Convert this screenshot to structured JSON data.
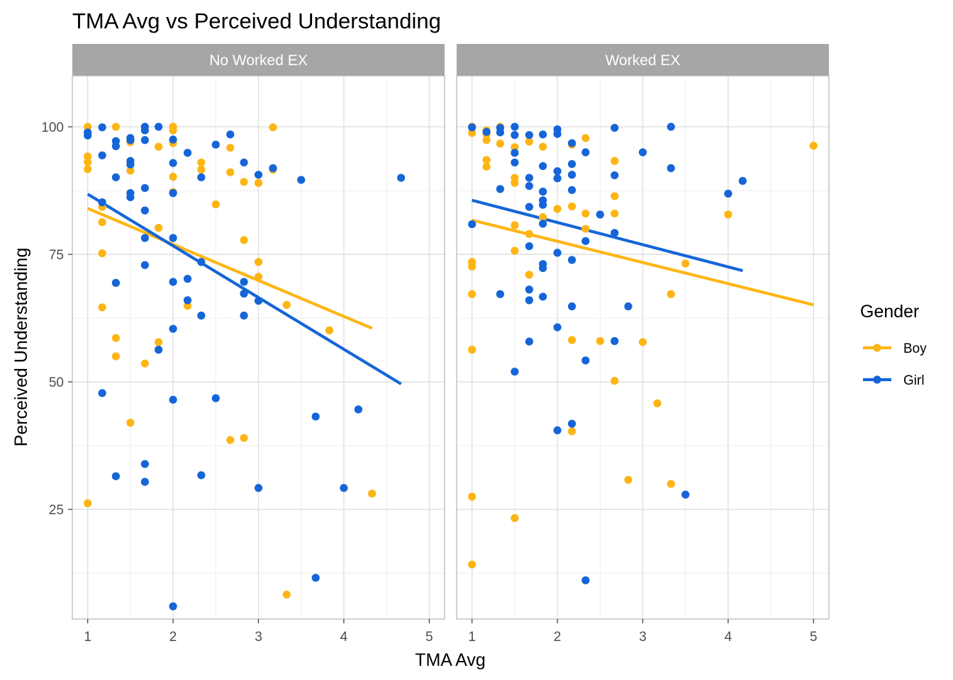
{
  "chart_data": {
    "type": "scatter",
    "title": "TMA Avg vs Perceived Understanding",
    "xlabel": "TMA Avg",
    "ylabel": "Perceived Understanding",
    "x_ticks": [
      1,
      2,
      3,
      4,
      5
    ],
    "y_ticks": [
      25,
      50,
      75,
      100
    ],
    "xlim": [
      0.82,
      5.18
    ],
    "ylim": [
      3.5,
      110
    ],
    "grid": true,
    "legend": {
      "title": "Gender",
      "position": "right"
    },
    "colors": {
      "Boy": "#FDB515",
      "Girl": "#1565D8"
    },
    "panels": [
      {
        "label": "No Worked EX",
        "trend": {
          "Boy": {
            "x": [
              1.0,
              4.33
            ],
            "y": [
              84.0,
              60.5
            ]
          },
          "Girl": {
            "x": [
              1.0,
              4.67
            ],
            "y": [
              86.8,
              49.6
            ]
          }
        },
        "series": [
          {
            "name": "Boy",
            "points": [
              [
                1.0,
                100
              ],
              [
                1.0,
                94.2
              ],
              [
                1.0,
                93.1
              ],
              [
                1.0,
                91.7
              ],
              [
                1.0,
                26.2
              ],
              [
                1.17,
                84.3
              ],
              [
                1.17,
                81.3
              ],
              [
                1.17,
                75.2
              ],
              [
                1.17,
                64.6
              ],
              [
                1.33,
                100
              ],
              [
                1.33,
                69.4
              ],
              [
                1.33,
                58.6
              ],
              [
                1.33,
                55.0
              ],
              [
                1.5,
                97.0
              ],
              [
                1.5,
                91.4
              ],
              [
                1.5,
                42.0
              ],
              [
                1.67,
                53.6
              ],
              [
                1.83,
                96.1
              ],
              [
                1.83,
                80.2
              ],
              [
                1.83,
                57.8
              ],
              [
                2.0,
                100
              ],
              [
                2.0,
                99.3
              ],
              [
                2.0,
                96.8
              ],
              [
                2.0,
                90.2
              ],
              [
                2.0,
                87.2
              ],
              [
                2.17,
                64.9
              ],
              [
                2.33,
                93.0
              ],
              [
                2.33,
                91.6
              ],
              [
                2.5,
                84.8
              ],
              [
                2.67,
                95.9
              ],
              [
                2.67,
                91.1
              ],
              [
                2.67,
                38.6
              ],
              [
                2.83,
                89.2
              ],
              [
                2.83,
                77.8
              ],
              [
                2.83,
                39.0
              ],
              [
                3.0,
                89.0
              ],
              [
                3.0,
                73.5
              ],
              [
                3.0,
                70.6
              ],
              [
                3.17,
                99.9
              ],
              [
                3.17,
                91.6
              ],
              [
                3.33,
                65.1
              ],
              [
                3.33,
                8.3
              ],
              [
                3.83,
                60.1
              ],
              [
                4.33,
                28.1
              ]
            ]
          },
          {
            "name": "Girl",
            "points": [
              [
                1.0,
                98.9
              ],
              [
                1.0,
                98.3
              ],
              [
                1.17,
                99.9
              ],
              [
                1.17,
                94.4
              ],
              [
                1.17,
                85.2
              ],
              [
                1.17,
                47.8
              ],
              [
                1.33,
                97.2
              ],
              [
                1.33,
                96.2
              ],
              [
                1.33,
                90.1
              ],
              [
                1.33,
                69.4
              ],
              [
                1.33,
                31.5
              ],
              [
                1.5,
                97.8
              ],
              [
                1.5,
                97.4
              ],
              [
                1.5,
                93.3
              ],
              [
                1.5,
                92.6
              ],
              [
                1.5,
                87.0
              ],
              [
                1.5,
                86.2
              ],
              [
                1.67,
                100
              ],
              [
                1.67,
                99.3
              ],
              [
                1.67,
                97.4
              ],
              [
                1.67,
                88.0
              ],
              [
                1.67,
                83.6
              ],
              [
                1.67,
                78.2
              ],
              [
                1.67,
                72.9
              ],
              [
                1.67,
                33.9
              ],
              [
                1.67,
                30.4
              ],
              [
                1.83,
                100
              ],
              [
                1.83,
                56.3
              ],
              [
                2.0,
                97.5
              ],
              [
                2.0,
                92.9
              ],
              [
                2.0,
                87.0
              ],
              [
                2.0,
                78.2
              ],
              [
                2.0,
                69.6
              ],
              [
                2.0,
                60.4
              ],
              [
                2.0,
                46.5
              ],
              [
                2.0,
                6.0
              ],
              [
                2.17,
                94.9
              ],
              [
                2.17,
                70.2
              ],
              [
                2.17,
                66.0
              ],
              [
                2.33,
                90.1
              ],
              [
                2.33,
                73.5
              ],
              [
                2.33,
                63.0
              ],
              [
                2.33,
                31.7
              ],
              [
                2.5,
                96.5
              ],
              [
                2.5,
                46.8
              ],
              [
                2.67,
                98.5
              ],
              [
                2.83,
                93.0
              ],
              [
                2.83,
                69.6
              ],
              [
                2.83,
                67.3
              ],
              [
                2.83,
                63.0
              ],
              [
                3.0,
                90.6
              ],
              [
                3.0,
                65.9
              ],
              [
                3.0,
                29.2
              ],
              [
                3.17,
                91.9
              ],
              [
                3.5,
                89.6
              ],
              [
                3.67,
                43.2
              ],
              [
                3.67,
                11.6
              ],
              [
                4.0,
                29.2
              ],
              [
                4.17,
                44.6
              ],
              [
                4.67,
                90.0
              ]
            ]
          }
        ]
      },
      {
        "label": "Worked EX",
        "trend": {
          "Boy": {
            "x": [
              1.0,
              5.0
            ],
            "y": [
              81.7,
              65.1
            ]
          },
          "Girl": {
            "x": [
              1.0,
              4.17
            ],
            "y": [
              85.6,
              71.8
            ]
          }
        },
        "series": [
          {
            "name": "Boy",
            "points": [
              [
                1.0,
                100
              ],
              [
                1.0,
                98.8
              ],
              [
                1.0,
                73.5
              ],
              [
                1.0,
                72.6
              ],
              [
                1.0,
                67.2
              ],
              [
                1.0,
                56.3
              ],
              [
                1.0,
                27.5
              ],
              [
                1.0,
                14.2
              ],
              [
                1.17,
                99.3
              ],
              [
                1.17,
                98.5
              ],
              [
                1.17,
                97.4
              ],
              [
                1.17,
                93.5
              ],
              [
                1.17,
                92.2
              ],
              [
                1.33,
                100
              ],
              [
                1.33,
                96.7
              ],
              [
                1.5,
                96.0
              ],
              [
                1.5,
                90.0
              ],
              [
                1.5,
                89.0
              ],
              [
                1.5,
                80.7
              ],
              [
                1.5,
                75.7
              ],
              [
                1.5,
                23.3
              ],
              [
                1.67,
                97.1
              ],
              [
                1.67,
                79.0
              ],
              [
                1.67,
                71.0
              ],
              [
                1.83,
                96.1
              ],
              [
                1.83,
                82.3
              ],
              [
                2.0,
                83.9
              ],
              [
                2.17,
                96.5
              ],
              [
                2.17,
                84.4
              ],
              [
                2.17,
                58.2
              ],
              [
                2.17,
                40.3
              ],
              [
                2.33,
                97.8
              ],
              [
                2.33,
                83.0
              ],
              [
                2.33,
                80.0
              ],
              [
                2.5,
                58.0
              ],
              [
                2.67,
                93.3
              ],
              [
                2.67,
                86.4
              ],
              [
                2.67,
                83.0
              ],
              [
                2.67,
                50.2
              ],
              [
                2.83,
                30.8
              ],
              [
                3.0,
                57.8
              ],
              [
                3.17,
                45.8
              ],
              [
                3.33,
                67.2
              ],
              [
                3.33,
                30.0
              ],
              [
                3.5,
                73.2
              ],
              [
                4.0,
                82.8
              ],
              [
                5.0,
                96.3
              ]
            ]
          },
          {
            "name": "Girl",
            "points": [
              [
                1.0,
                99.9
              ],
              [
                1.0,
                80.9
              ],
              [
                1.17,
                99.0
              ],
              [
                1.33,
                99.8
              ],
              [
                1.33,
                98.9
              ],
              [
                1.33,
                87.8
              ],
              [
                1.33,
                67.2
              ],
              [
                1.5,
                100
              ],
              [
                1.5,
                98.4
              ],
              [
                1.5,
                94.9
              ],
              [
                1.5,
                93.0
              ],
              [
                1.5,
                52.0
              ],
              [
                1.67,
                98.4
              ],
              [
                1.67,
                90.0
              ],
              [
                1.67,
                88.4
              ],
              [
                1.67,
                84.3
              ],
              [
                1.67,
                76.6
              ],
              [
                1.67,
                68.1
              ],
              [
                1.67,
                66.0
              ],
              [
                1.67,
                57.9
              ],
              [
                1.83,
                98.5
              ],
              [
                1.83,
                92.3
              ],
              [
                1.83,
                87.3
              ],
              [
                1.83,
                85.6
              ],
              [
                1.83,
                84.7
              ],
              [
                1.83,
                81.0
              ],
              [
                1.83,
                73.1
              ],
              [
                1.83,
                72.3
              ],
              [
                1.83,
                66.7
              ],
              [
                2.0,
                99.5
              ],
              [
                2.0,
                98.6
              ],
              [
                2.0,
                91.3
              ],
              [
                2.0,
                89.9
              ],
              [
                2.0,
                75.3
              ],
              [
                2.0,
                60.7
              ],
              [
                2.0,
                40.5
              ],
              [
                2.17,
                96.8
              ],
              [
                2.17,
                92.7
              ],
              [
                2.17,
                90.6
              ],
              [
                2.17,
                87.6
              ],
              [
                2.17,
                73.9
              ],
              [
                2.17,
                64.8
              ],
              [
                2.17,
                41.8
              ],
              [
                2.33,
                95.0
              ],
              [
                2.33,
                77.6
              ],
              [
                2.33,
                54.2
              ],
              [
                2.33,
                11.1
              ],
              [
                2.5,
                82.8
              ],
              [
                2.67,
                99.8
              ],
              [
                2.67,
                90.5
              ],
              [
                2.67,
                79.2
              ],
              [
                2.67,
                58.0
              ],
              [
                2.83,
                64.8
              ],
              [
                3.0,
                95.0
              ],
              [
                3.33,
                100
              ],
              [
                3.33,
                91.9
              ],
              [
                3.5,
                27.9
              ],
              [
                4.0,
                86.9
              ],
              [
                4.17,
                89.4
              ]
            ]
          }
        ]
      }
    ]
  }
}
